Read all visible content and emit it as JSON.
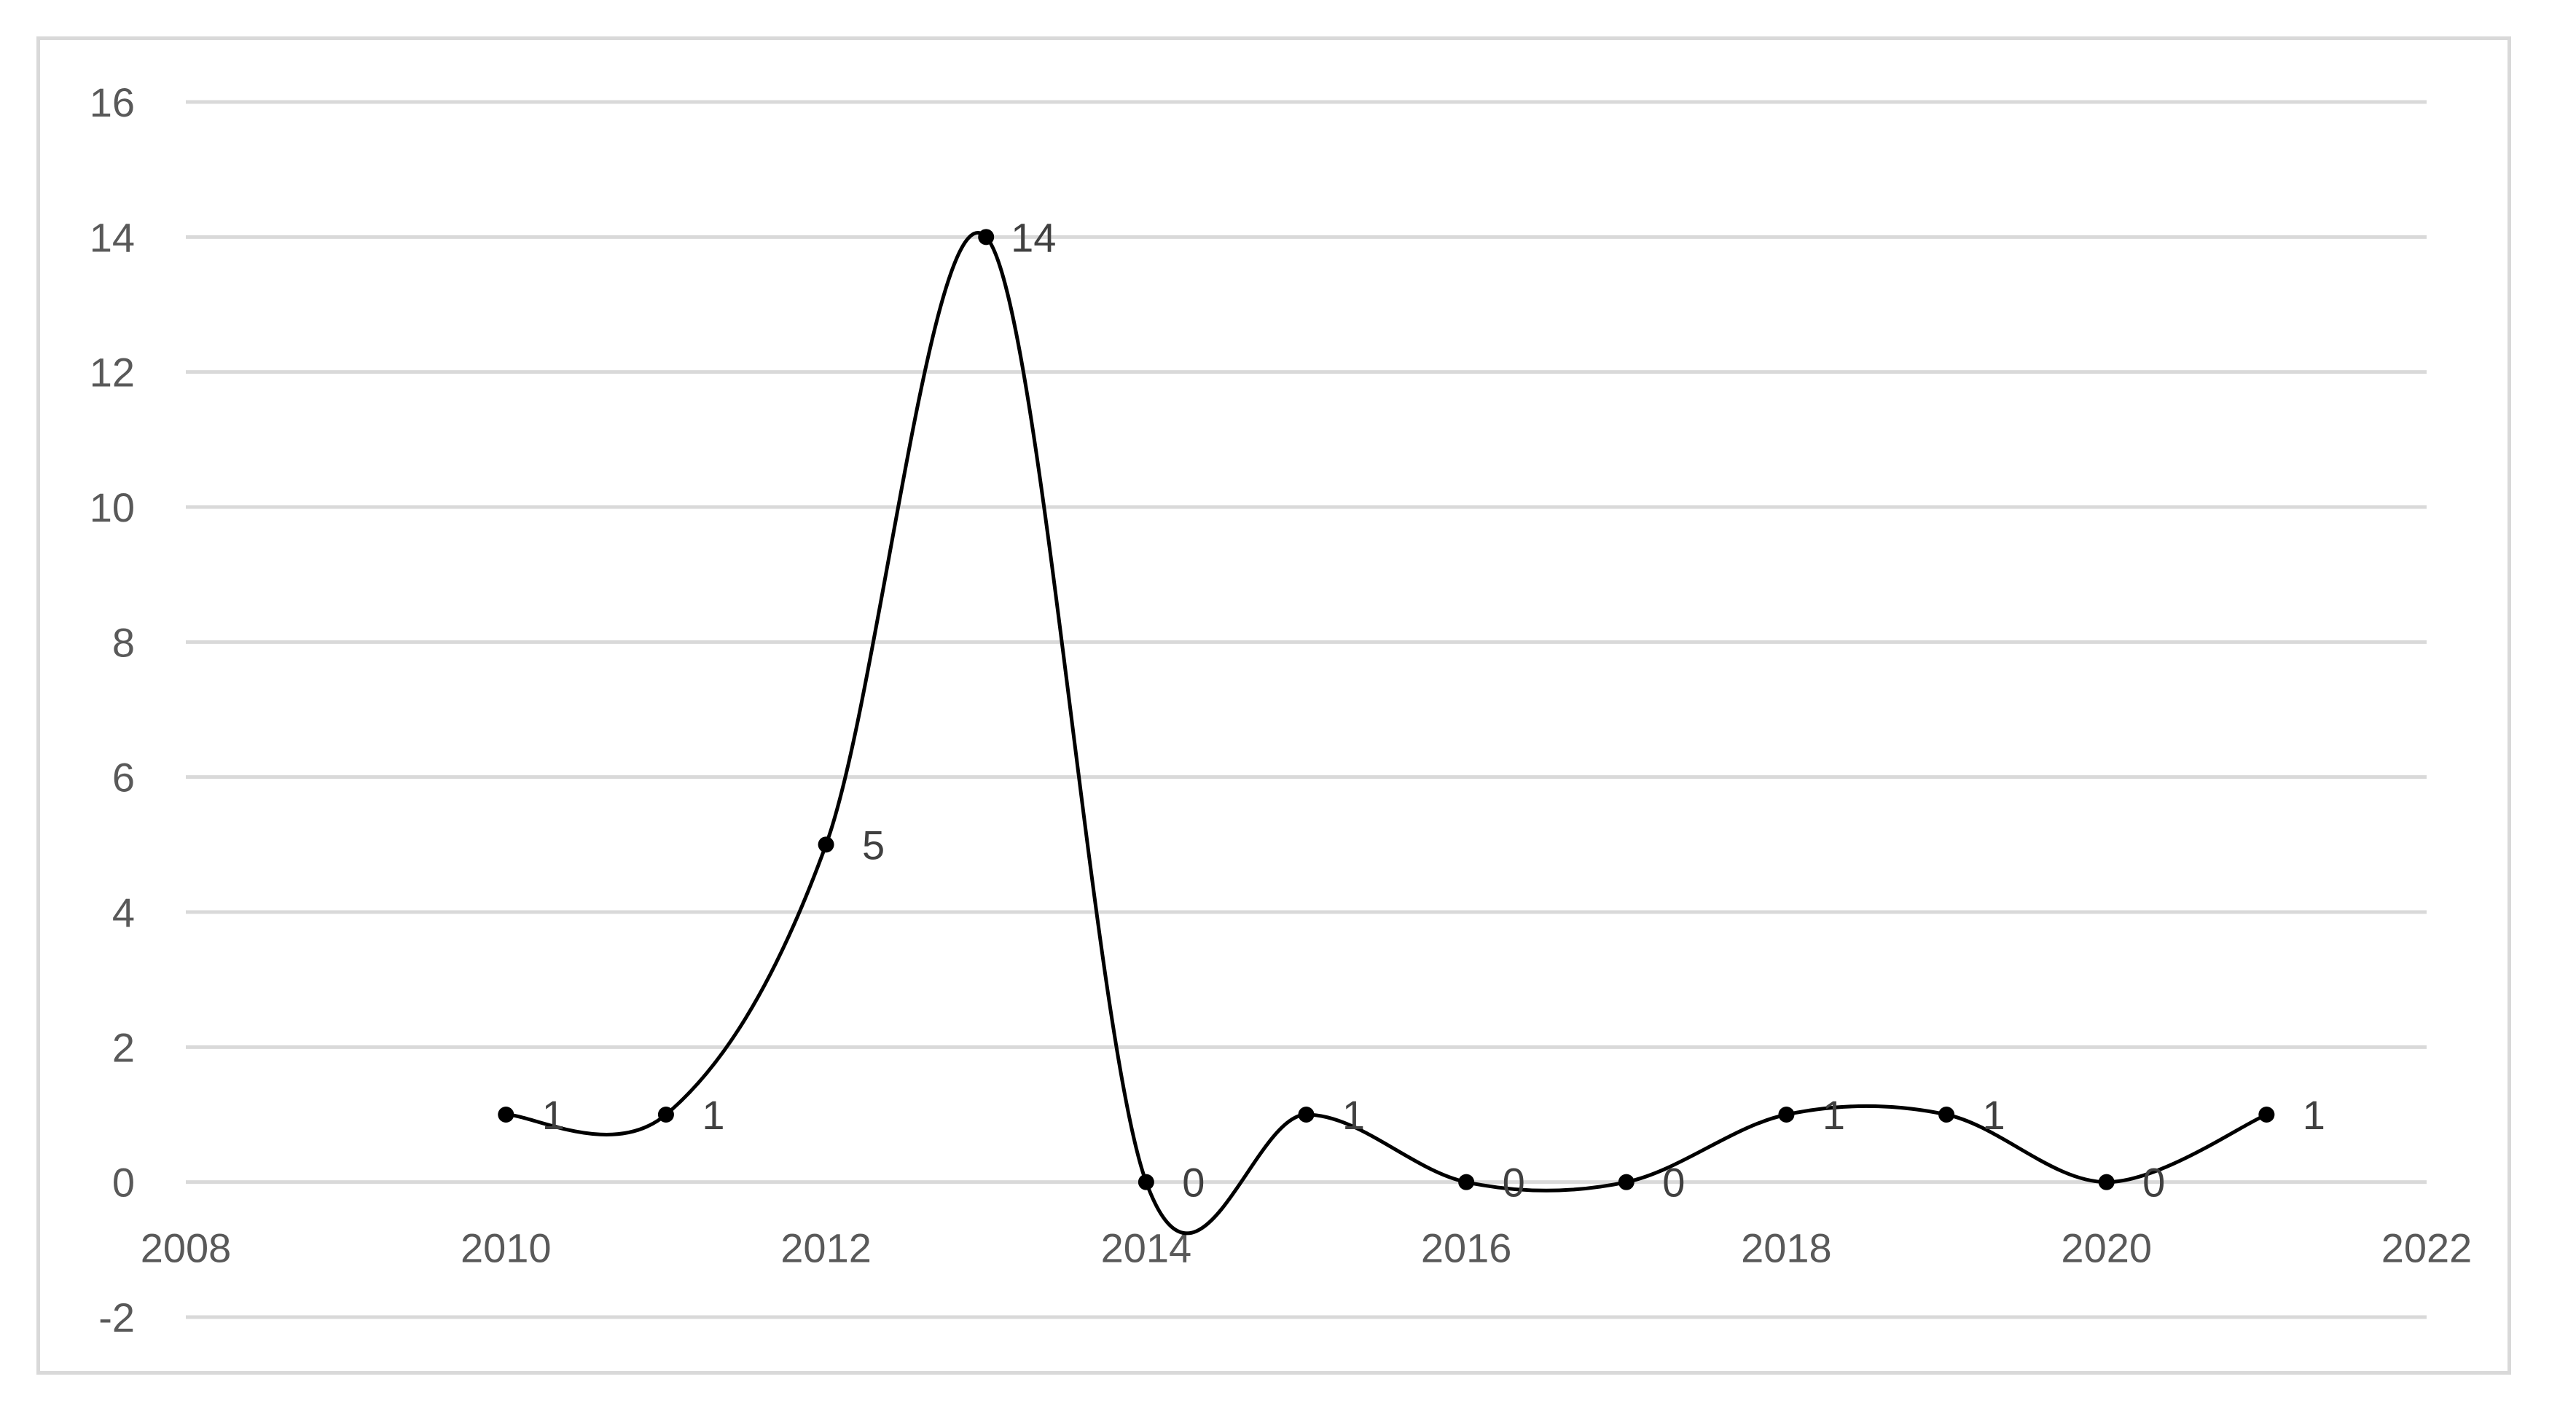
{
  "chart_data": {
    "type": "scatter",
    "title": "",
    "xlabel": "",
    "ylabel": "",
    "xlim": [
      2008,
      2022
    ],
    "ylim": [
      -2,
      16
    ],
    "x_ticks": [
      2008,
      2010,
      2012,
      2014,
      2016,
      2018,
      2020,
      2022
    ],
    "y_ticks": [
      -2,
      0,
      2,
      4,
      6,
      8,
      10,
      12,
      14,
      16
    ],
    "grid": "horizontal",
    "line_style": "smoothed",
    "legend": "none",
    "series": [
      {
        "x": [
          2010,
          2011,
          2012,
          2013,
          2014,
          2015,
          2016,
          2017,
          2018,
          2019,
          2020,
          2021
        ],
        "y": [
          1,
          1,
          5,
          14,
          0,
          1,
          0,
          0,
          1,
          1,
          0,
          1
        ],
        "data_labels": [
          "1",
          "1",
          "5",
          "14",
          "0",
          "1",
          "0",
          "0",
          "1",
          "1",
          "0",
          "1"
        ]
      }
    ],
    "colors": {
      "line": "#000000",
      "gridline": "#d9d9d9",
      "tick_text": "#595959",
      "frame": "#d9d9d9"
    }
  }
}
